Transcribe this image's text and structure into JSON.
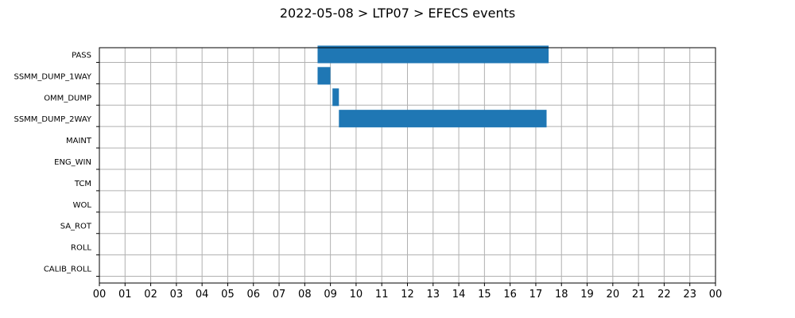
{
  "chart_data": {
    "type": "bar",
    "orientation": "horizontal-timeline",
    "title": "2022-05-08 > LTP07 > EFECS events",
    "xlabel": "",
    "ylabel": "",
    "xlim": [
      0,
      24
    ],
    "grid": true,
    "bar_color": "#1f77b4",
    "grid_color": "#b0b0b0",
    "x_tick_labels": [
      "00",
      "01",
      "02",
      "03",
      "04",
      "05",
      "06",
      "07",
      "08",
      "09",
      "10",
      "11",
      "12",
      "13",
      "14",
      "15",
      "16",
      "17",
      "18",
      "19",
      "20",
      "21",
      "22",
      "23",
      "00"
    ],
    "categories": [
      "PASS",
      "SSMM_DUMP_1WAY",
      "OMM_DUMP",
      "SSMM_DUMP_2WAY",
      "MAINT",
      "ENG_WIN",
      "TCM",
      "WOL",
      "SA_ROT",
      "ROLL",
      "CALIB_ROLL"
    ],
    "events": [
      {
        "category": "PASS",
        "start": 8.5,
        "end": 17.5
      },
      {
        "category": "SSMM_DUMP_1WAY",
        "start": 8.5,
        "end": 9.0
      },
      {
        "category": "OMM_DUMP",
        "start": 9.08,
        "end": 9.33
      },
      {
        "category": "SSMM_DUMP_2WAY",
        "start": 9.33,
        "end": 17.42
      }
    ]
  }
}
